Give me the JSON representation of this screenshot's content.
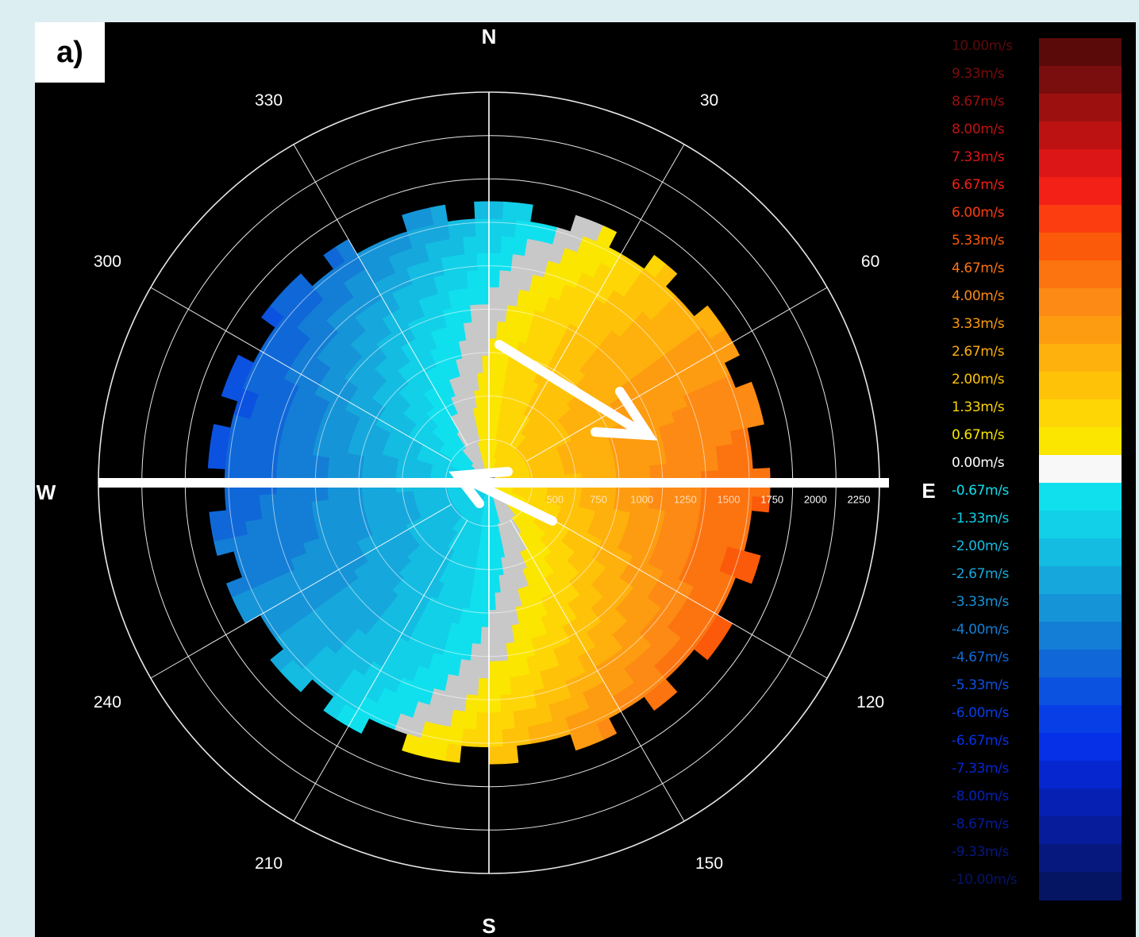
{
  "panel_label": "a)",
  "chart_data": {
    "type": "polar-ppi",
    "cardinal_labels": {
      "n": "N",
      "e": "E",
      "s": "S",
      "w": "W"
    },
    "azimuth_labels": [
      "30",
      "60",
      "120",
      "150",
      "210",
      "240",
      "300",
      "330"
    ],
    "range_labels": [
      "250",
      "500",
      "750",
      "1000",
      "1250",
      "1500",
      "1750",
      "2000",
      "2250"
    ],
    "range_max": 2250,
    "measured_range_max": 1620,
    "velocity_range": [
      -10,
      10
    ],
    "legend": [
      {
        "label": "10.00m/s",
        "color": "#5b0a0a"
      },
      {
        "label": "9.33m/s",
        "color": "#7a0d0d"
      },
      {
        "label": "8.67m/s",
        "color": "#9c1010"
      },
      {
        "label": "8.00m/s",
        "color": "#bd1212"
      },
      {
        "label": "7.33m/s",
        "color": "#dc1616"
      },
      {
        "label": "6.67m/s",
        "color": "#f22016"
      },
      {
        "label": "6.00m/s",
        "color": "#fb3d0f"
      },
      {
        "label": "5.33m/s",
        "color": "#fb5a0a"
      },
      {
        "label": "4.67m/s",
        "color": "#fb7410"
      },
      {
        "label": "4.00m/s",
        "color": "#fc8a14"
      },
      {
        "label": "3.33m/s",
        "color": "#fd9c10"
      },
      {
        "label": "2.67m/s",
        "color": "#feb00c"
      },
      {
        "label": "2.00m/s",
        "color": "#fec208"
      },
      {
        "label": "1.33m/s",
        "color": "#fed606"
      },
      {
        "label": "0.67m/s",
        "color": "#fbe600"
      },
      {
        "label": "0.00m/s",
        "color": "#f8f8f8"
      },
      {
        "label": "-0.67m/s",
        "color": "#10e0ee"
      },
      {
        "label": "-1.33m/s",
        "color": "#12d0e8"
      },
      {
        "label": "-2.00m/s",
        "color": "#14bce2"
      },
      {
        "label": "-2.67m/s",
        "color": "#16a8dc"
      },
      {
        "label": "-3.33m/s",
        "color": "#1694d8"
      },
      {
        "label": "-4.00m/s",
        "color": "#147ed6"
      },
      {
        "label": "-4.67m/s",
        "color": "#1068d8"
      },
      {
        "label": "-5.33m/s",
        "color": "#0c52e0"
      },
      {
        "label": "-6.00m/s",
        "color": "#083ee6"
      },
      {
        "label": "-6.67m/s",
        "color": "#0630e8"
      },
      {
        "label": "-7.33m/s",
        "color": "#0626d0"
      },
      {
        "label": "-8.00m/s",
        "color": "#0620b4"
      },
      {
        "label": "-8.67m/s",
        "color": "#061c9a"
      },
      {
        "label": "-9.33m/s",
        "color": "#06187e"
      },
      {
        "label": "-10.00m/s",
        "color": "#061464"
      }
    ],
    "gray_color": "#c8c8c8"
  }
}
